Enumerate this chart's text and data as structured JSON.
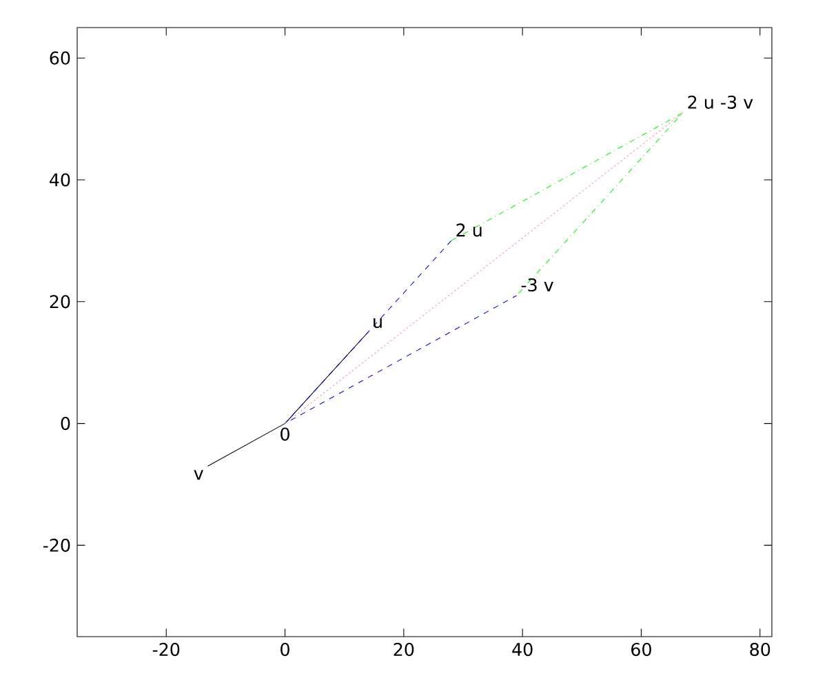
{
  "chart_data": {
    "type": "line",
    "series": [
      {
        "color": "#000000",
        "line_style": "solid",
        "x": [
          14,
          0,
          -13
        ],
        "values": [
          15,
          0,
          -7
        ]
      },
      {
        "color": "#0000ff",
        "line_style": "dashed",
        "x": [
          28,
          0,
          39
        ],
        "values": [
          30,
          0,
          21
        ]
      },
      {
        "color": "#00ff00",
        "line_style": "dashdotted",
        "x": [
          28,
          67,
          39
        ],
        "values": [
          30,
          51,
          21
        ]
      },
      {
        "color": "#ff9999",
        "line_style": "dotted",
        "x": [
          0,
          67
        ],
        "values": [
          0,
          51
        ]
      }
    ],
    "annotations": [
      {
        "text": "0",
        "x": 0,
        "y": 0
      },
      {
        "text": "u",
        "x": 14,
        "y": 15
      },
      {
        "text": "v",
        "x": -13,
        "y": -7
      },
      {
        "text": "2 u",
        "x": 28,
        "y": 30
      },
      {
        "text": "-3 v",
        "x": 39,
        "y": 21
      },
      {
        "text": "2 u -3 v",
        "x": 67,
        "y": 51
      }
    ],
    "xlim": [
      -35,
      82
    ],
    "ylim": [
      -35,
      65
    ],
    "xticks": [
      -20,
      0,
      20,
      40,
      60,
      80
    ],
    "yticks": [
      -20,
      0,
      20,
      40,
      60
    ],
    "grid": false,
    "marker": "none"
  }
}
